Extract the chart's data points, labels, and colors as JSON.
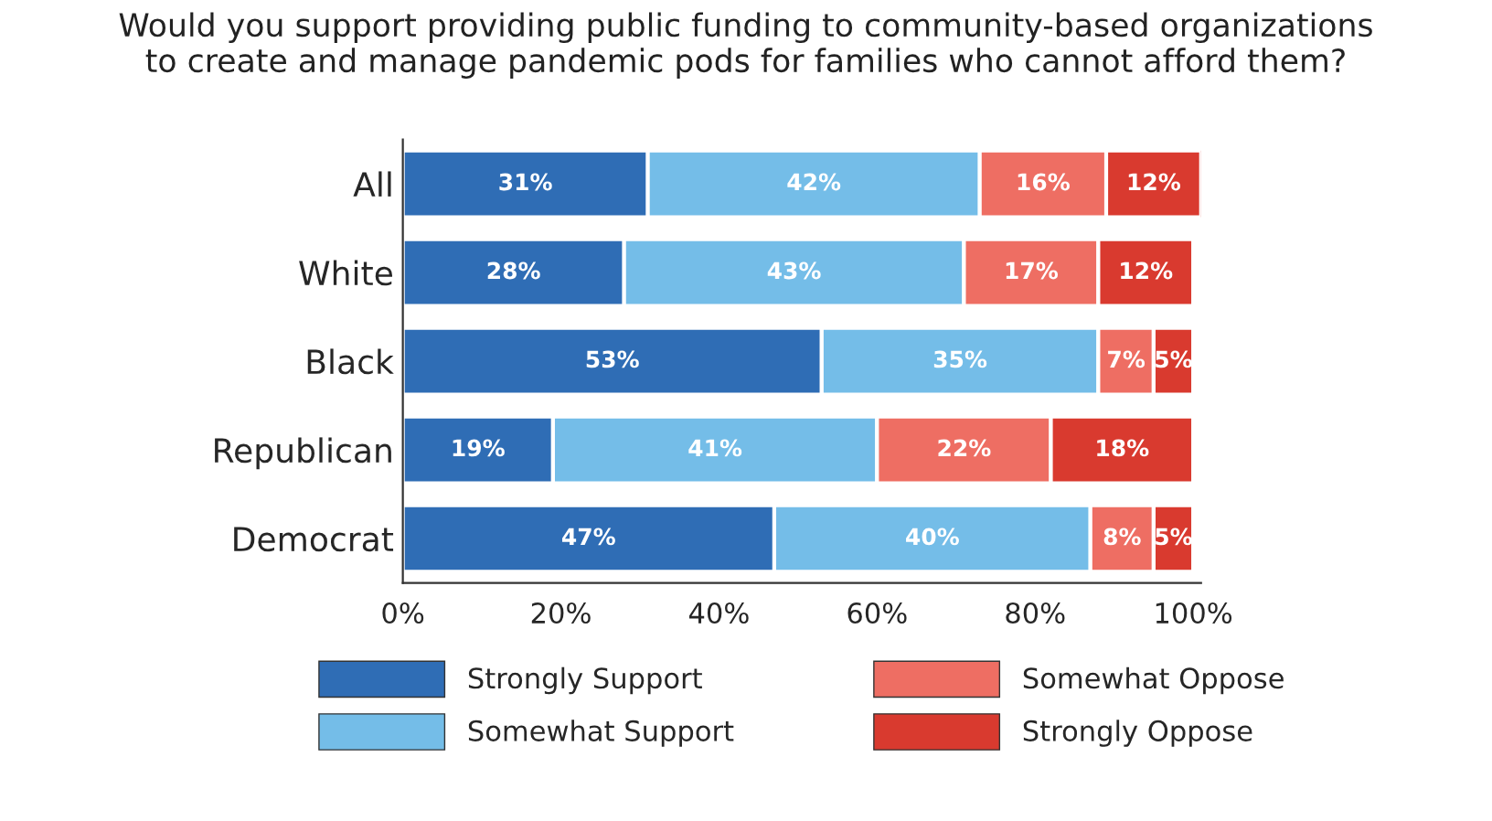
{
  "chart_data": {
    "type": "bar",
    "orientation": "horizontal",
    "stacked": true,
    "title": "Would you support providing public funding to community-based organizations\nto create and manage pandemic pods for families who cannot afford them?",
    "categories": [
      "All",
      "White",
      "Black",
      "Republican",
      "Democrat"
    ],
    "series": [
      {
        "name": "Strongly Support",
        "color": "#2f6db5",
        "values": [
          31,
          28,
          53,
          19,
          47
        ],
        "value_labels": [
          "31%",
          "28%",
          "53%",
          "19%",
          "47%"
        ]
      },
      {
        "name": "Somewhat Support",
        "color": "#74bde8",
        "values": [
          42,
          43,
          35,
          41,
          40
        ],
        "value_labels": [
          "42%",
          "43%",
          "35%",
          "41%",
          "40%"
        ]
      },
      {
        "name": "Somewhat Oppose",
        "color": "#ee6e63",
        "values": [
          16,
          17,
          7,
          22,
          8
        ],
        "value_labels": [
          "16%",
          "17%",
          "7%",
          "22%",
          "8%"
        ]
      },
      {
        "name": "Strongly Oppose",
        "color": "#d93a2f",
        "values": [
          12,
          12,
          5,
          18,
          5
        ],
        "value_labels": [
          "12%",
          "12%",
          "5%",
          "18%",
          "5%"
        ]
      }
    ],
    "xlim": [
      0,
      101
    ],
    "xticks": [
      {
        "value": 0,
        "label": "0%"
      },
      {
        "value": 20,
        "label": "20%"
      },
      {
        "value": 40,
        "label": "40%"
      },
      {
        "value": 60,
        "label": "60%"
      },
      {
        "value": 80,
        "label": "80%"
      },
      {
        "value": 100,
        "label": "100%"
      }
    ],
    "grid": false,
    "legend": "bottom"
  }
}
